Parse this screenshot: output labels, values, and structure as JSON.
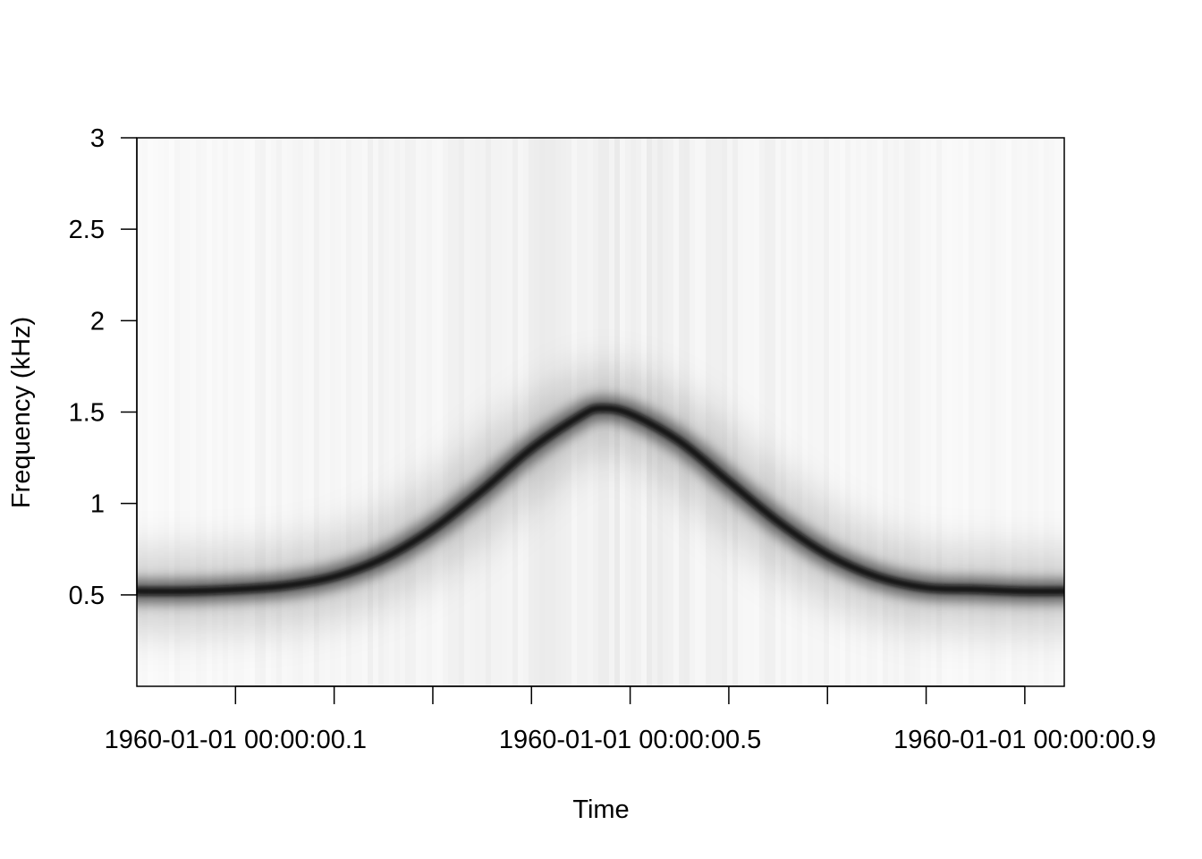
{
  "chart_data": {
    "type": "heatmap",
    "title": "",
    "xlabel": "Time",
    "ylabel": "Frequency (kHz)",
    "xlim": [
      0.0,
      0.94
    ],
    "ylim": [
      0.0,
      3.0
    ],
    "x_ticks": [
      0.1,
      0.2,
      0.3,
      0.4,
      0.5,
      0.6,
      0.7,
      0.8,
      0.9
    ],
    "x_tick_labels": [
      {
        "x": 0.1,
        "label": "1960-01-01 00:00:00.1"
      },
      {
        "x": 0.5,
        "label": "1960-01-01 00:00:00.5"
      },
      {
        "x": 0.9,
        "label": "1960-01-01 00:00:00.9"
      }
    ],
    "y_ticks": [
      0.5,
      1,
      1.5,
      2,
      2.5,
      3
    ],
    "y_tick_labels": [
      "0.5",
      "1",
      "1.5",
      "2",
      "2.5",
      "3"
    ],
    "colormap": [
      "#ffffff",
      "#000000"
    ],
    "ridge": {
      "description_units": "time in seconds, frequency in kHz",
      "baseline_khz": 0.52,
      "peak_khz": 1.52,
      "peak_time": 0.47,
      "time": [
        0.0,
        0.05,
        0.1,
        0.15,
        0.2,
        0.25,
        0.3,
        0.35,
        0.4,
        0.45,
        0.47,
        0.5,
        0.55,
        0.6,
        0.65,
        0.7,
        0.75,
        0.8,
        0.85,
        0.9,
        0.94
      ],
      "frequency": [
        0.52,
        0.52,
        0.53,
        0.55,
        0.6,
        0.7,
        0.86,
        1.07,
        1.3,
        1.48,
        1.52,
        1.49,
        1.34,
        1.12,
        0.9,
        0.72,
        0.6,
        0.54,
        0.53,
        0.52,
        0.52
      ]
    }
  }
}
